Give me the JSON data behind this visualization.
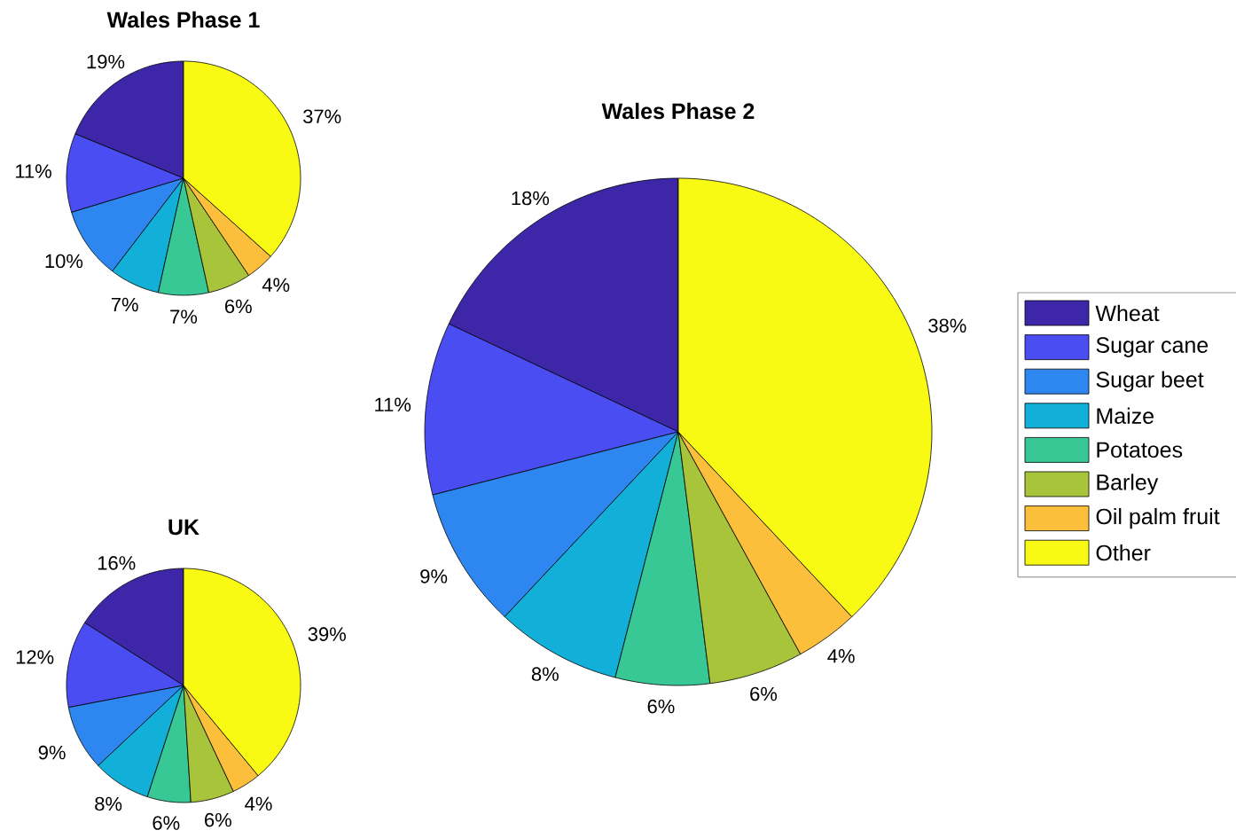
{
  "chart_data": [
    {
      "type": "pie",
      "title": "Wales Phase 1",
      "legend": false,
      "categories": [
        null,
        null,
        null,
        null,
        null,
        null,
        null,
        null
      ],
      "values": [
        19,
        11,
        10,
        7,
        7,
        6,
        4,
        37
      ],
      "value_labels": [
        "19%",
        "11%",
        "10%",
        "7%",
        "7%",
        "6%",
        "4%",
        "37%"
      ],
      "colors": [
        "#3e26a8",
        "#4a4ef2",
        "#2e87f0",
        "#12b0d8",
        "#38c896",
        "#a8c43a",
        "#fbbf3c",
        "#f8fa14"
      ]
    },
    {
      "type": "pie",
      "title": "Wales Phase 2",
      "legend": "right",
      "categories": [
        "Wheat",
        "Sugar cane",
        "Sugar beet",
        "Maize",
        "Potatoes",
        "Barley",
        "Oil palm fruit",
        "Other"
      ],
      "values": [
        18,
        11,
        9,
        8,
        6,
        6,
        4,
        38
      ],
      "value_labels": [
        "18%",
        "11%",
        "9%",
        "8%",
        "6%",
        "6%",
        "4%",
        "38%"
      ],
      "colors": [
        "#3e26a8",
        "#4a4ef2",
        "#2e87f0",
        "#12b0d8",
        "#38c896",
        "#a8c43a",
        "#fbbf3c",
        "#f8fa14"
      ]
    },
    {
      "type": "pie",
      "title": "UK",
      "legend": false,
      "categories": [
        null,
        null,
        null,
        null,
        null,
        null,
        null,
        null
      ],
      "values": [
        16,
        12,
        9,
        8,
        6,
        6,
        4,
        39
      ],
      "value_labels": [
        "16%",
        "12%",
        "9%",
        "8%",
        "6%",
        "6%",
        "4%",
        "39%"
      ],
      "colors": [
        "#3e26a8",
        "#4a4ef2",
        "#2e87f0",
        "#12b0d8",
        "#38c896",
        "#a8c43a",
        "#fbbf3c",
        "#f8fa14"
      ]
    }
  ]
}
